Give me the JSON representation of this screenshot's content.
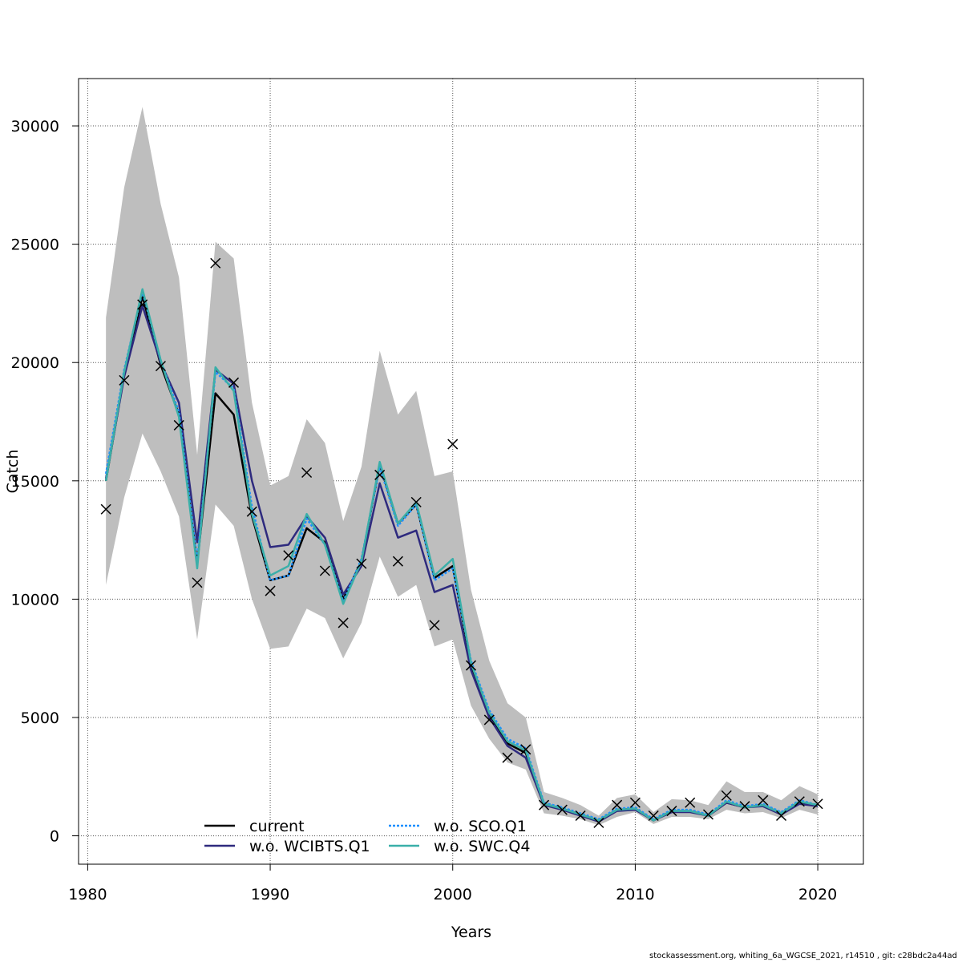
{
  "chart_data": {
    "type": "line",
    "title": "",
    "xlabel": "Years",
    "ylabel": "Catch",
    "xlim": [
      1979.5,
      2022.5
    ],
    "ylim": [
      -1200,
      32000
    ],
    "x_ticks": [
      1980,
      1990,
      2000,
      2010,
      2020
    ],
    "y_ticks": [
      0,
      5000,
      10000,
      15000,
      20000,
      25000,
      30000
    ],
    "grid": true,
    "legend_position": "bottom-left",
    "years": [
      1981,
      1982,
      1983,
      1984,
      1985,
      1986,
      1987,
      1988,
      1989,
      1990,
      1991,
      1992,
      1993,
      1994,
      1995,
      1996,
      1997,
      1998,
      1999,
      2000,
      2001,
      2002,
      2003,
      2004,
      2005,
      2006,
      2007,
      2008,
      2009,
      2010,
      2011,
      2012,
      2013,
      2014,
      2015,
      2016,
      2017,
      2018,
      2019,
      2020
    ],
    "confidence_band": {
      "color": "#bebebe",
      "upper": [
        21900,
        27400,
        30800,
        26700,
        23600,
        16100,
        25100,
        24400,
        18300,
        14800,
        15200,
        17600,
        16600,
        13300,
        15600,
        20500,
        17800,
        18800,
        15200,
        15400,
        10400,
        7400,
        5600,
        5000,
        1850,
        1600,
        1300,
        850,
        1600,
        1750,
        1000,
        1550,
        1500,
        1300,
        2300,
        1850,
        1850,
        1500,
        2100,
        1750
      ],
      "lower": [
        10600,
        14300,
        17000,
        15400,
        13500,
        8300,
        14000,
        13100,
        10000,
        7900,
        8000,
        9600,
        9200,
        7500,
        9000,
        11800,
        10100,
        10600,
        8000,
        8300,
        5500,
        4100,
        3100,
        2800,
        950,
        850,
        700,
        450,
        800,
        1000,
        500,
        800,
        800,
        700,
        1100,
        950,
        1000,
        750,
        1100,
        900
      ]
    },
    "series": [
      {
        "name": "current",
        "color": "#000000",
        "dash": "",
        "values": [
          15000,
          19500,
          22800,
          19900,
          17800,
          11500,
          18700,
          17800,
          13500,
          10800,
          11000,
          13000,
          12400,
          10000,
          11600,
          15700,
          13200,
          14000,
          10900,
          11400,
          7200,
          5100,
          3900,
          3500,
          1350,
          1150,
          900,
          650,
          1100,
          1150,
          650,
          1050,
          1050,
          850,
          1400,
          1200,
          1300,
          950,
          1450,
          1250
        ]
      },
      {
        "name": "w.o. WCIBTS.Q1",
        "color": "#2e2a7e",
        "dash": "",
        "values": [
          15100,
          19400,
          22400,
          20000,
          18300,
          12400,
          19700,
          19100,
          15000,
          12200,
          12300,
          13500,
          12600,
          10200,
          11400,
          14900,
          12600,
          12900,
          10300,
          10600,
          7000,
          5000,
          3800,
          3300,
          1300,
          1100,
          850,
          600,
          1050,
          1100,
          650,
          1000,
          1000,
          850,
          1400,
          1200,
          1250,
          900,
          1350,
          1250
        ]
      },
      {
        "name": "w.o. SCO.Q1",
        "color": "#1e90ff",
        "dash": "3,2",
        "values": [
          15300,
          19700,
          23000,
          20100,
          17900,
          11600,
          19600,
          18900,
          13900,
          10800,
          11000,
          13400,
          12300,
          9900,
          11700,
          15600,
          13100,
          14000,
          10800,
          11300,
          7400,
          5300,
          4100,
          3700,
          1400,
          1200,
          950,
          700,
          1150,
          1200,
          700,
          1100,
          1100,
          900,
          1500,
          1250,
          1350,
          1000,
          1500,
          1300
        ]
      },
      {
        "name": "w.o. SWC.Q4",
        "color": "#3aafa9",
        "dash": "",
        "values": [
          15000,
          19600,
          23100,
          20100,
          17700,
          11300,
          19800,
          18800,
          13600,
          11000,
          11400,
          13600,
          12300,
          9800,
          11600,
          15800,
          13200,
          14100,
          11000,
          11700,
          7300,
          5200,
          4000,
          3600,
          1350,
          1150,
          900,
          650,
          1100,
          1150,
          650,
          1050,
          1050,
          850,
          1450,
          1200,
          1300,
          950,
          1450,
          1300
        ]
      }
    ],
    "observed": {
      "name": "observations",
      "marker": "x",
      "values": [
        13800,
        19250,
        22450,
        19850,
        17350,
        10700,
        24200,
        19150,
        13700,
        10350,
        11850,
        15350,
        11200,
        9000,
        11500,
        15250,
        11600,
        14100,
        8900,
        16550,
        7200,
        4900,
        3300,
        3650,
        1300,
        1100,
        850,
        550,
        1300,
        1400,
        850,
        1050,
        1400,
        900,
        1700,
        1250,
        1500,
        850,
        1450,
        1350
      ]
    }
  },
  "footer": {
    "caption": "stockassessment.org, whiting_6a_WGCSE_2021, r14510 , git: c28bdc2a44ad"
  }
}
